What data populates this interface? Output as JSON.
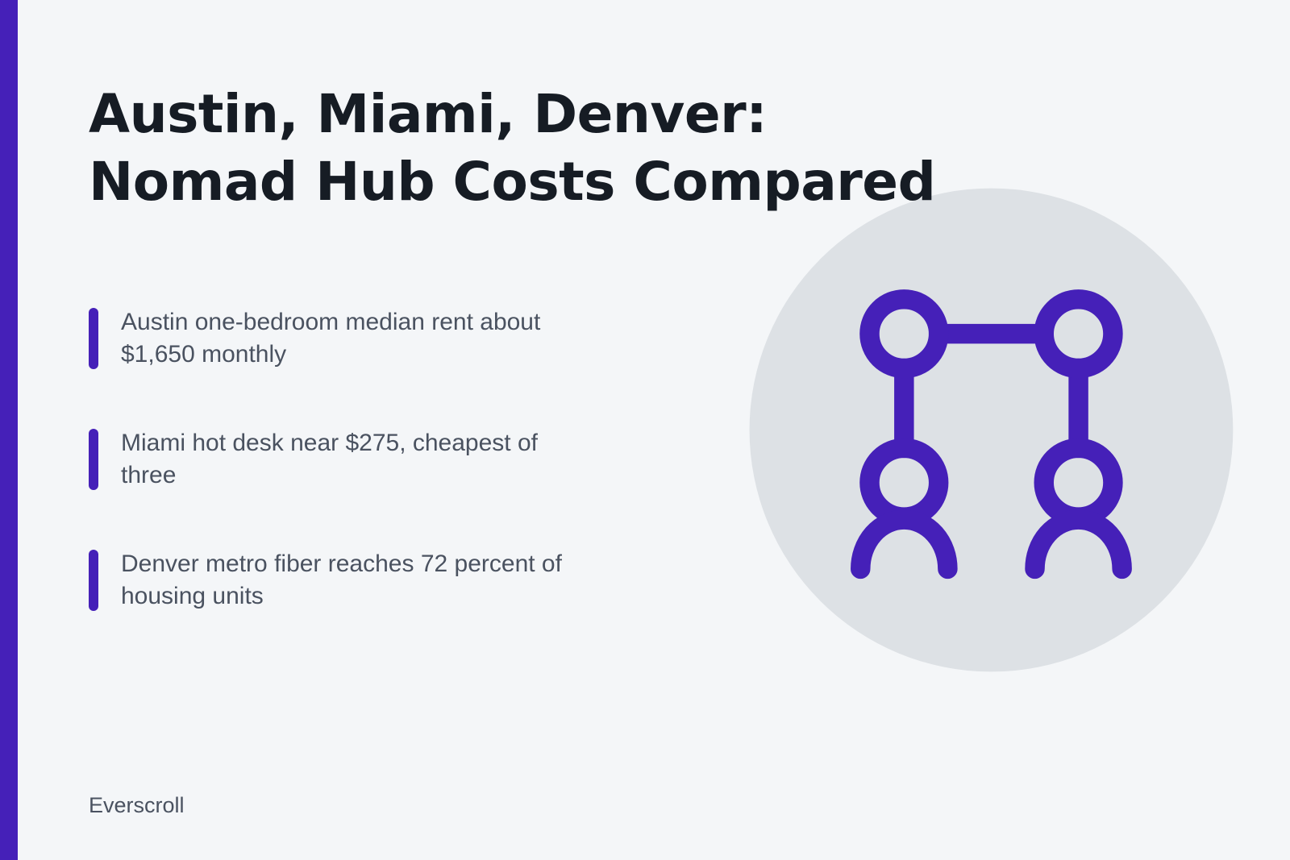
{
  "header": {
    "title_lines": [
      "Austin, Miami, Denver:",
      "Nomad Hub Costs Compared"
    ]
  },
  "points": [
    "Austin one-bedroom median rent about $1,650 monthly",
    "Miami hot desk near $275, cheapest of three",
    "Denver metro fiber reaches 72 percent of housing units"
  ],
  "footer": {
    "brand": "Everscroll"
  }
}
